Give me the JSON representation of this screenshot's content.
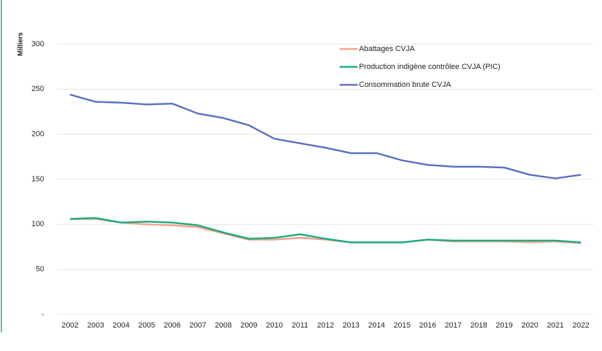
{
  "chart_data": {
    "type": "line",
    "y_axis_label": "Milliers",
    "categories": [
      "2002",
      "2003",
      "2004",
      "2005",
      "2006",
      "2007",
      "2008",
      "2009",
      "2010",
      "2011",
      "2012",
      "2013",
      "2014",
      "2015",
      "2016",
      "2017",
      "2018",
      "2019",
      "2020",
      "2021",
      "2022"
    ],
    "series": [
      {
        "name": "Abattages CVJA",
        "color": "#f4a08c",
        "values": [
          106,
          106,
          102,
          100,
          99,
          97,
          90,
          83,
          83,
          85,
          83,
          80,
          80,
          80,
          83,
          81,
          81,
          81,
          80,
          81,
          79
        ]
      },
      {
        "name": "Production indigène contrôlee CVJA (PIC)",
        "color": "#1aaa7e",
        "values": [
          106,
          107,
          102,
          103,
          102,
          99,
          91,
          84,
          85,
          89,
          84,
          80,
          80,
          80,
          83,
          82,
          82,
          82,
          82,
          82,
          80
        ]
      },
      {
        "name": "Consommation brute CVJA",
        "color": "#5a6fbf",
        "values": [
          244,
          236,
          235,
          233,
          234,
          223,
          218,
          210,
          195,
          190,
          185,
          179,
          179,
          171,
          166,
          164,
          164,
          163,
          155,
          151,
          155
        ]
      }
    ],
    "ylim": [
      0,
      300
    ],
    "yticks": [
      {
        "value": 0,
        "label": "-"
      },
      50,
      100,
      150,
      200,
      250,
      300
    ],
    "grid": true
  }
}
